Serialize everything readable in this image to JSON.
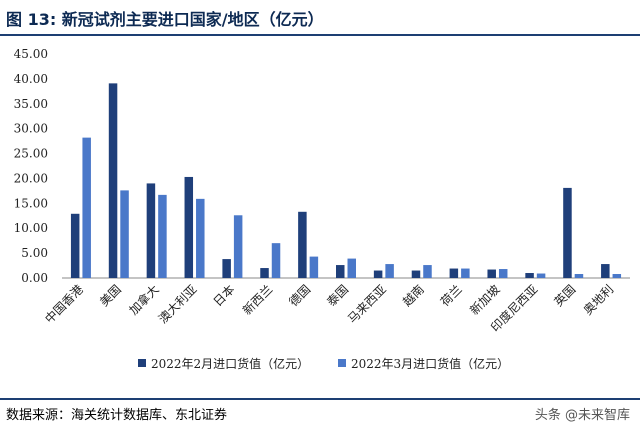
{
  "figure": {
    "title": "图 13:  新冠试剂主要进口国家/地区（亿元）",
    "source": "数据来源：海关统计数据库、东北证券",
    "watermark": "头条 @未来智库"
  },
  "chart_data": {
    "type": "bar",
    "title": "",
    "xlabel": "",
    "ylabel": "",
    "ylim": [
      0,
      45
    ],
    "yticks": [
      "0.00",
      "5.00",
      "10.00",
      "15.00",
      "20.00",
      "25.00",
      "30.00",
      "35.00",
      "40.00",
      "45.00"
    ],
    "grid": false,
    "legend_position": "bottom",
    "categories": [
      "中国香港",
      "美国",
      "加拿大",
      "澳大利亚",
      "日本",
      "新西兰",
      "德国",
      "泰国",
      "马来西亚",
      "越南",
      "荷兰",
      "新加坡",
      "印度尼西亚",
      "英国",
      "奥地利"
    ],
    "series": [
      {
        "name": "2022年2月进口货值（亿元）",
        "color": "#1f3f7a",
        "values": [
          12.9,
          39.1,
          19.0,
          20.3,
          3.8,
          2.0,
          13.3,
          2.6,
          1.5,
          1.5,
          1.9,
          1.7,
          1.0,
          18.1,
          2.8
        ]
      },
      {
        "name": "2022年3月进口货值（亿元）",
        "color": "#4a78c9",
        "values": [
          28.2,
          17.6,
          16.7,
          15.9,
          12.6,
          7.0,
          4.3,
          3.9,
          2.8,
          2.6,
          1.9,
          1.8,
          0.9,
          0.8,
          0.8
        ]
      }
    ]
  }
}
